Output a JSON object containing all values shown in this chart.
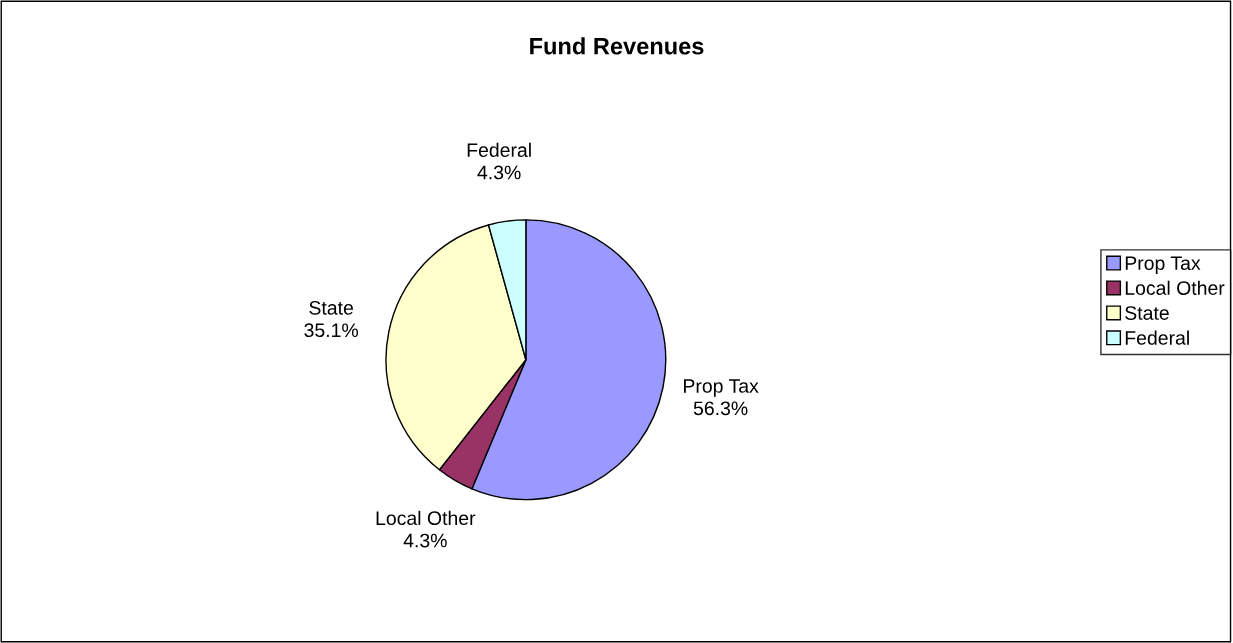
{
  "chart_data": {
    "type": "pie",
    "title": "Fund Revenues",
    "categories": [
      "Prop Tax",
      "Local Other",
      "State",
      "Federal"
    ],
    "values": [
      56.3,
      4.3,
      35.1,
      4.3
    ],
    "value_labels": [
      "56.3%",
      "4.3%",
      "35.1%",
      "4.3%"
    ],
    "colors": [
      "#9999ff",
      "#993366",
      "#ffffcc",
      "#ccffff"
    ],
    "legend": "right"
  }
}
